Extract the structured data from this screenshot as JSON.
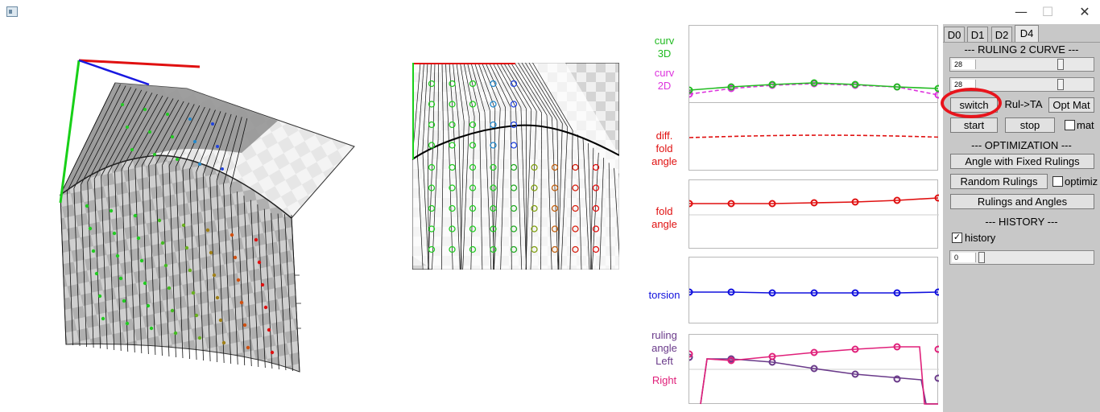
{
  "window": {
    "minimize": "—",
    "maximize": "☐",
    "close": "✕"
  },
  "plots": {
    "curv3d": [
      "curv",
      "3D"
    ],
    "curv2d": [
      "curv",
      "2D"
    ],
    "difffold": [
      "diff.",
      "fold",
      "angle"
    ],
    "fold": [
      "fold",
      "angle"
    ],
    "torsion": "torsion",
    "ruling": [
      "ruling",
      "angle",
      "Left"
    ],
    "right": "Right",
    "colors": {
      "green": "#22bb22",
      "magenta": "#dd33dd",
      "red": "#e01010",
      "blue": "#1010dd",
      "pink": "#e0207a",
      "purple": "#6a3a8a"
    }
  },
  "panel": {
    "tabs": [
      "D0",
      "D1",
      "D2",
      "D4"
    ],
    "active_tab": "D4",
    "ruling_header": "--- RULING 2 CURVE ---",
    "slider1_value": "28",
    "slider2_value": "28",
    "switch": "switch",
    "rul_ta": "Rul->TA",
    "opt_mat": "Opt Mat",
    "start": "start",
    "stop": "stop",
    "mat": "mat",
    "opt_header": "--- OPTIMIZATION ---",
    "angle_fixed": "Angle with Fixed Rulings",
    "random_rulings": "Random Rulings",
    "optimiz": "optimiz",
    "rulings_angles": "Rulings and Angles",
    "history_header": "--- HISTORY ---",
    "history": "history",
    "history_value": "0"
  }
}
